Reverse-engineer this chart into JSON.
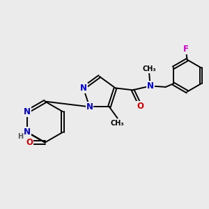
{
  "background_color": "#ebebeb",
  "bond_color": "#000000",
  "bond_width": 1.4,
  "atom_colors": {
    "N": "#0000cc",
    "O": "#cc0000",
    "F": "#cc00cc",
    "H": "#555555",
    "C": "#000000"
  },
  "font_size_atom": 8.5,
  "font_size_small": 7.0
}
